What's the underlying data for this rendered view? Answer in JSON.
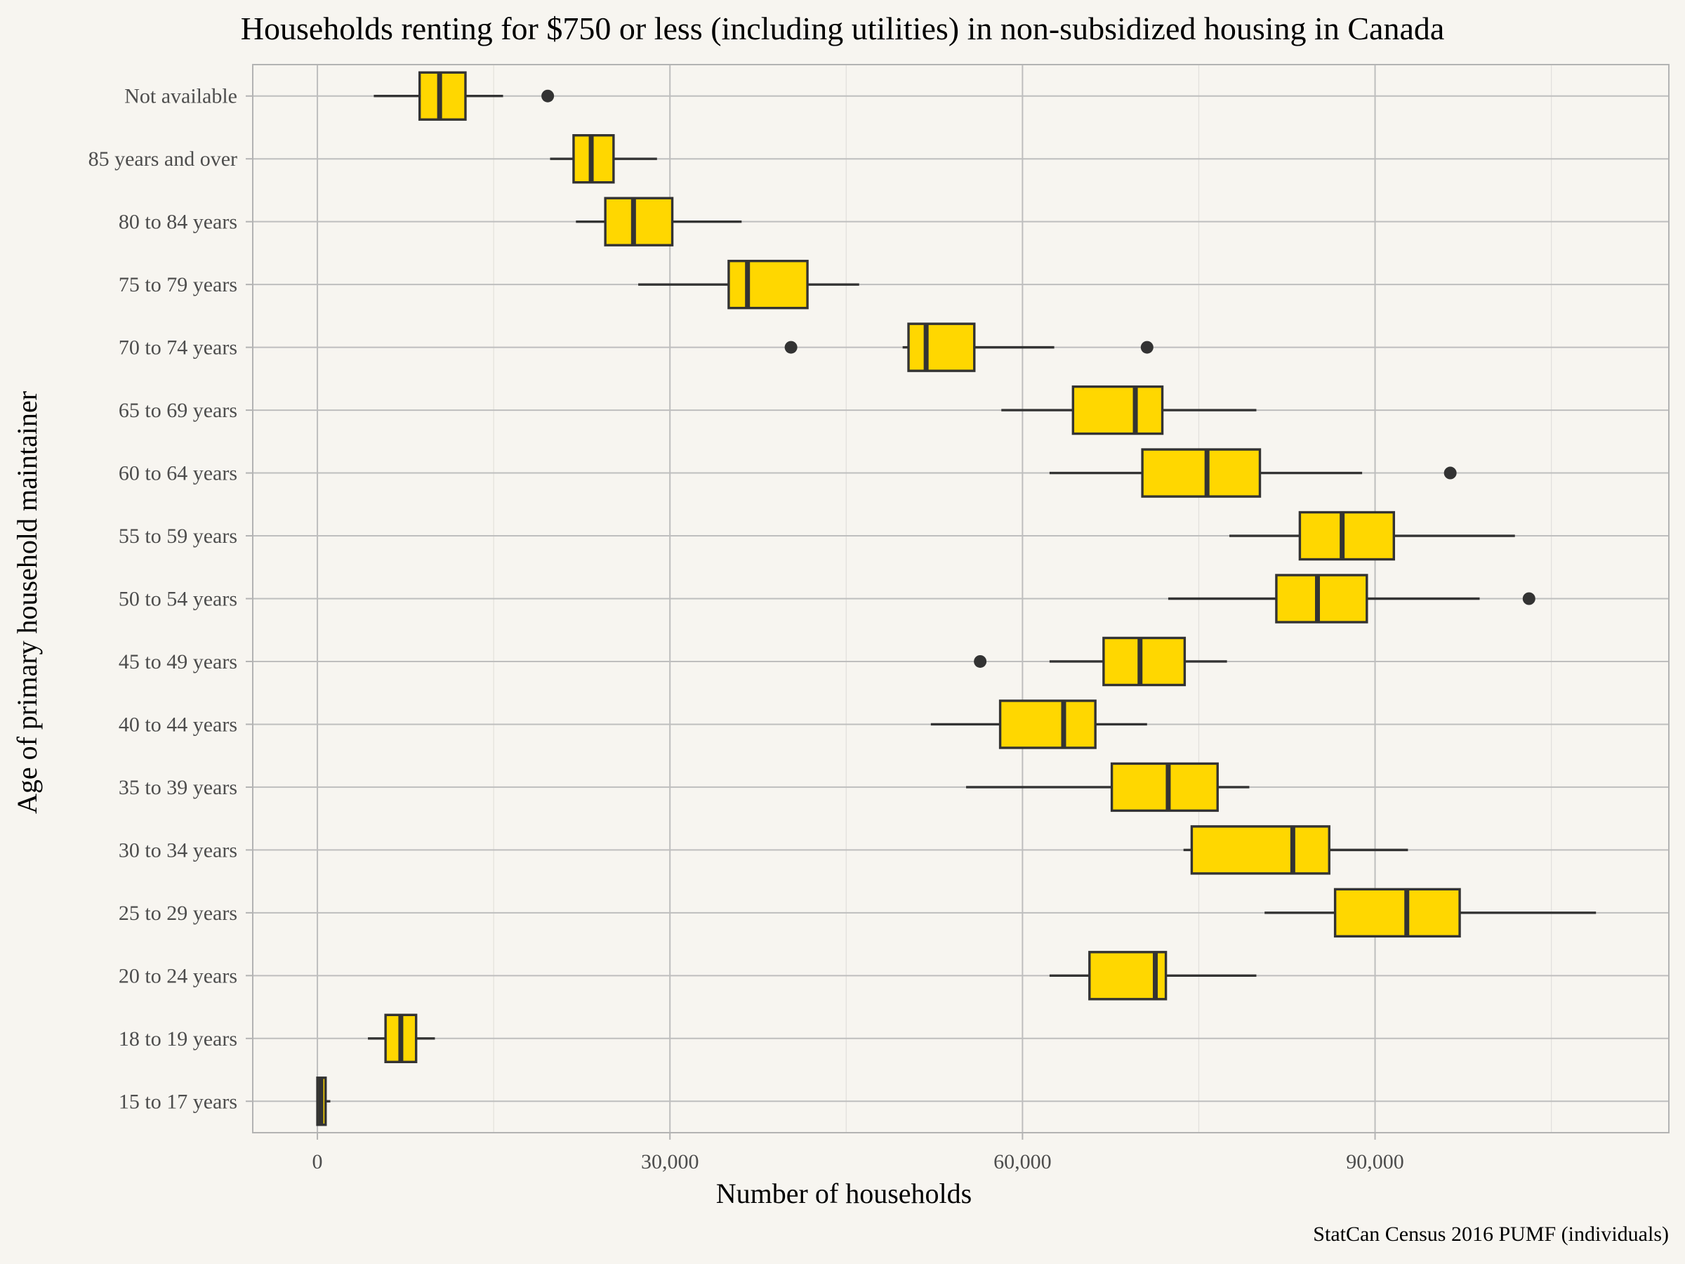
{
  "chart_data": {
    "type": "boxplot",
    "orientation": "horizontal",
    "title": "Households renting for $750 or less (including utilities) in non-subsidized housing in Canada",
    "xlabel": "Number of households",
    "ylabel": "Age of primary household maintainer",
    "caption": "StatCan Census 2016 PUMF (individuals)",
    "xlim": [
      -5500,
      115000
    ],
    "xticks": [
      0,
      30000,
      60000,
      90000
    ],
    "xtick_labels": [
      "0",
      "30,000",
      "60,000",
      "90,000"
    ],
    "grid": true,
    "box_fill": "#FFD700",
    "line_color": "#333333",
    "panel_background": "#F7F5F0",
    "grid_color": "#BEBEBE",
    "categories": [
      "Not available",
      "85 years and over",
      "80 to 84 years",
      "75 to 79 years",
      "70 to 74 years",
      "65 to 69 years",
      "60 to 64 years",
      "55 to 59 years",
      "50 to 54 years",
      "45 to 49 years",
      "40 to 44 years",
      "35 to 39 years",
      "30 to 34 years",
      "25 to 29 years",
      "20 to 24 years",
      "18 to 19 years",
      "15 to 17 years"
    ],
    "boxes": [
      {
        "label": "Not available",
        "whisker_low": 4800,
        "q1": 8700,
        "median": 10400,
        "q3": 12600,
        "whisker_high": 15800,
        "outliers": [
          19600
        ]
      },
      {
        "label": "85 years and over",
        "whisker_low": 19800,
        "q1": 21800,
        "median": 23300,
        "q3": 25200,
        "whisker_high": 28900,
        "outliers": []
      },
      {
        "label": "80 to 84 years",
        "whisker_low": 22000,
        "q1": 24500,
        "median": 26900,
        "q3": 30200,
        "whisker_high": 36100,
        "outliers": []
      },
      {
        "label": "75 to 79 years",
        "whisker_low": 27300,
        "q1": 35000,
        "median": 36600,
        "q3": 41700,
        "whisker_high": 46100,
        "outliers": []
      },
      {
        "label": "70 to 74 years",
        "whisker_low": 49800,
        "q1": 50300,
        "median": 51800,
        "q3": 55900,
        "whisker_high": 62700,
        "outliers": [
          40300,
          70600
        ]
      },
      {
        "label": "65 to 69 years",
        "whisker_low": 58200,
        "q1": 64300,
        "median": 69600,
        "q3": 71900,
        "whisker_high": 79900,
        "outliers": []
      },
      {
        "label": "60 to 64 years",
        "whisker_low": 62300,
        "q1": 70200,
        "median": 75700,
        "q3": 80200,
        "whisker_high": 88900,
        "outliers": [
          96400
        ]
      },
      {
        "label": "55 to 59 years",
        "whisker_low": 77600,
        "q1": 83600,
        "median": 87200,
        "q3": 91600,
        "whisker_high": 101900,
        "outliers": []
      },
      {
        "label": "50 to 54 years",
        "whisker_low": 72400,
        "q1": 81600,
        "median": 85100,
        "q3": 89300,
        "whisker_high": 98900,
        "outliers": [
          103100
        ]
      },
      {
        "label": "45 to 49 years",
        "whisker_low": 62300,
        "q1": 66900,
        "median": 70000,
        "q3": 73800,
        "whisker_high": 77400,
        "outliers": [
          56400
        ]
      },
      {
        "label": "40 to 44 years",
        "whisker_low": 52200,
        "q1": 58100,
        "median": 63500,
        "q3": 66200,
        "whisker_high": 70600,
        "outliers": []
      },
      {
        "label": "35 to 39 years",
        "whisker_low": 55200,
        "q1": 67600,
        "median": 72400,
        "q3": 76600,
        "whisker_high": 79300,
        "outliers": []
      },
      {
        "label": "30 to 34 years",
        "whisker_low": 73700,
        "q1": 74400,
        "median": 83000,
        "q3": 86100,
        "whisker_high": 92800,
        "outliers": []
      },
      {
        "label": "25 to 29 years",
        "whisker_low": 80600,
        "q1": 86600,
        "median": 92700,
        "q3": 97200,
        "whisker_high": 108800,
        "outliers": []
      },
      {
        "label": "20 to 24 years",
        "whisker_low": 62300,
        "q1": 65700,
        "median": 71300,
        "q3": 72200,
        "whisker_high": 79900,
        "outliers": []
      },
      {
        "label": "18 to 19 years",
        "whisker_low": 4300,
        "q1": 5800,
        "median": 7100,
        "q3": 8400,
        "whisker_high": 10000,
        "outliers": []
      },
      {
        "label": "15 to 17 years",
        "whisker_low": 0,
        "q1": 0,
        "median": 300,
        "q3": 700,
        "whisker_high": 1100,
        "outliers": []
      }
    ]
  }
}
